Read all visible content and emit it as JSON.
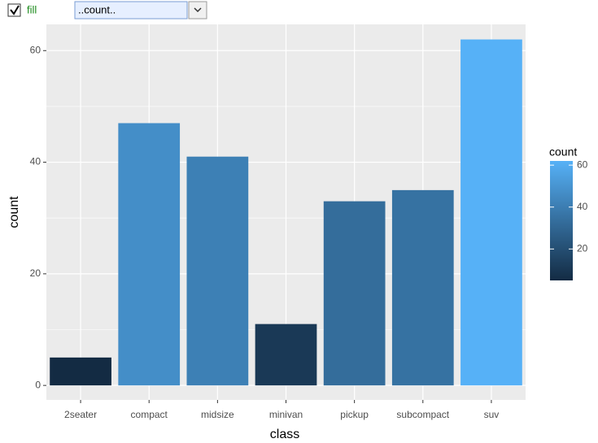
{
  "controls": {
    "checkbox_label": "fill",
    "dropdown_value": "..count.."
  },
  "chart_data": {
    "type": "bar",
    "x_label": "class",
    "y_label": "count",
    "categories": [
      "2seater",
      "compact",
      "midsize",
      "minivan",
      "pickup",
      "subcompact",
      "suv"
    ],
    "values": [
      5,
      47,
      41,
      11,
      33,
      35,
      62
    ],
    "ylim": [
      -2.6,
      64.7
    ],
    "yticks": [
      0,
      20,
      40,
      60
    ],
    "yminor": [
      10,
      30,
      50
    ],
    "grid": true,
    "fill_scale": {
      "title": "count",
      "low": "#132B43",
      "high": "#56B1F7",
      "limits": [
        5,
        62
      ],
      "ticks": [
        20,
        40,
        60
      ]
    }
  }
}
